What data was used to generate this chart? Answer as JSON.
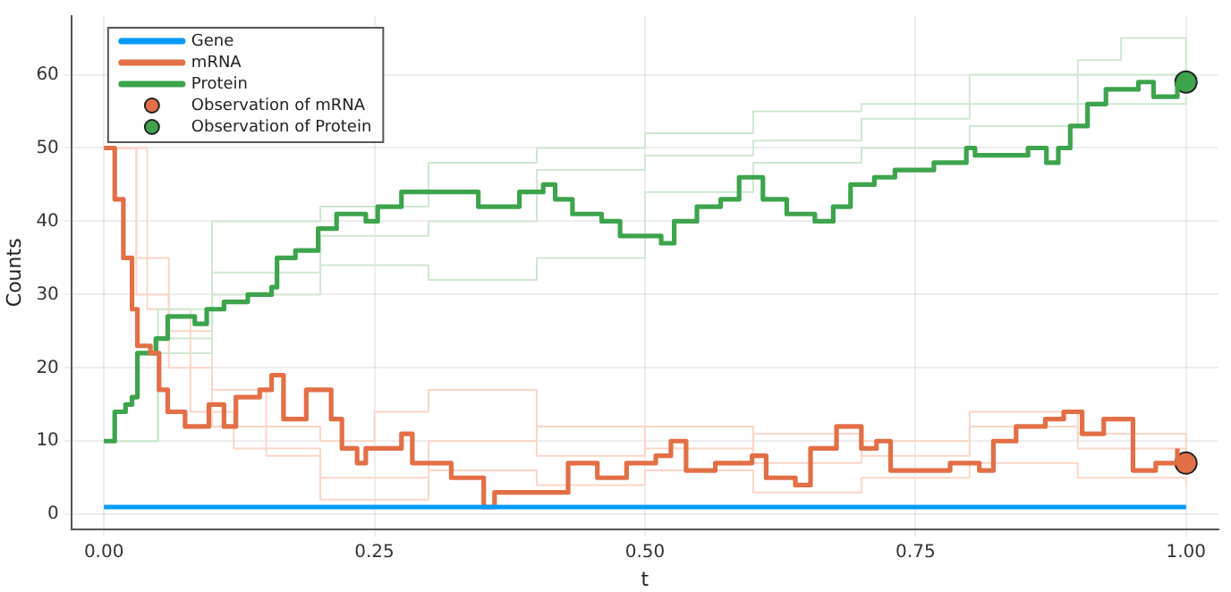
{
  "chart_data": {
    "type": "step",
    "xlabel": "t",
    "ylabel": "Counts",
    "xlim": [
      -0.03,
      1.03
    ],
    "ylim": [
      -2,
      68
    ],
    "xticks": [
      {
        "value": 0,
        "label": "0.00"
      },
      {
        "value": 0.25,
        "label": "0.25"
      },
      {
        "value": 0.5,
        "label": "0.50"
      },
      {
        "value": 0.75,
        "label": "0.75"
      },
      {
        "value": 1,
        "label": "1.00"
      }
    ],
    "yticks": [
      0,
      10,
      20,
      30,
      40,
      50,
      60
    ],
    "grid": true,
    "legend": "top left",
    "line_style": "solid",
    "series": [
      {
        "color": "#cfe8d0",
        "x": [
          0,
          0.05,
          0.1,
          0.2,
          0.3,
          0.4,
          0.5,
          0.6,
          0.7,
          0.8,
          0.9,
          0.94,
          1
        ],
        "values": [
          10,
          28,
          40,
          42,
          48,
          50,
          52,
          55,
          56,
          60,
          62,
          65,
          60
        ]
      },
      {
        "color": "#cfe8d0",
        "x": [
          0,
          0.05,
          0.1,
          0.2,
          0.3,
          0.4,
          0.5,
          0.6,
          0.7,
          0.8,
          0.9,
          1
        ],
        "values": [
          10,
          22,
          30,
          34,
          32,
          35,
          44,
          48,
          50,
          53,
          56,
          57
        ]
      },
      {
        "color": "#cfe8d0",
        "x": [
          0,
          0.05,
          0.1,
          0.2,
          0.3,
          0.4,
          0.5,
          0.6,
          0.7,
          0.8,
          0.9,
          1
        ],
        "values": [
          10,
          24,
          33,
          38,
          40,
          47,
          49,
          51,
          54,
          56,
          60,
          61
        ]
      },
      {
        "color": "#fbd6c8",
        "x": [
          0,
          0.03,
          0.06,
          0.1,
          0.15,
          0.2,
          0.3,
          0.4,
          0.5,
          0.6,
          0.7,
          0.8,
          0.9,
          1
        ],
        "values": [
          50,
          30,
          20,
          12,
          8,
          5,
          10,
          12,
          9,
          11,
          8,
          12,
          9,
          6
        ]
      },
      {
        "color": "#fbd6c8",
        "x": [
          0,
          0.03,
          0.06,
          0.1,
          0.15,
          0.2,
          0.25,
          0.3,
          0.4,
          0.5,
          0.6,
          0.7,
          0.8,
          0.9,
          1
        ],
        "values": [
          50,
          35,
          25,
          17,
          12,
          10,
          14,
          17,
          8,
          12,
          7,
          10,
          14,
          11,
          8
        ]
      },
      {
        "color": "#fbd6c8",
        "x": [
          0,
          0.04,
          0.08,
          0.12,
          0.2,
          0.3,
          0.4,
          0.5,
          0.6,
          0.7,
          0.8,
          0.9,
          1
        ],
        "values": [
          50,
          28,
          14,
          9,
          2,
          6,
          4,
          6,
          3,
          5,
          7,
          5,
          4
        ]
      },
      {
        "name": "Gene",
        "color": "#009afa",
        "x": [
          0,
          1
        ],
        "values": [
          1,
          1
        ]
      },
      {
        "name": "mRNA",
        "color": "#e26f46",
        "x": [
          0,
          0.01,
          0.018,
          0.026,
          0.031,
          0.043,
          0.051,
          0.059,
          0.075,
          0.097,
          0.111,
          0.122,
          0.144,
          0.155,
          0.166,
          0.187,
          0.21,
          0.22,
          0.234,
          0.242,
          0.275,
          0.285,
          0.321,
          0.351,
          0.361,
          0.395,
          0.429,
          0.456,
          0.483,
          0.51,
          0.524,
          0.538,
          0.565,
          0.599,
          0.612,
          0.639,
          0.653,
          0.677,
          0.7,
          0.714,
          0.727,
          0.755,
          0.782,
          0.809,
          0.822,
          0.843,
          0.87,
          0.887,
          0.904,
          0.924,
          0.951,
          0.972,
          0.992
        ],
        "values": [
          50,
          43,
          35,
          28,
          23,
          22,
          17,
          14,
          12,
          15,
          12,
          16,
          17,
          19,
          13,
          17,
          13,
          9,
          7,
          9,
          11,
          7,
          5,
          1,
          3,
          3,
          7,
          5,
          7,
          8,
          10,
          6,
          7,
          8,
          5,
          4,
          9,
          12,
          9,
          10,
          6,
          6,
          7,
          6,
          10,
          12,
          13,
          14,
          11,
          13,
          6,
          7,
          9
        ]
      },
      {
        "name": "Protein",
        "color": "#3da44d",
        "x": [
          0,
          0.01,
          0.02,
          0.026,
          0.031,
          0.048,
          0.059,
          0.084,
          0.095,
          0.111,
          0.133,
          0.155,
          0.16,
          0.177,
          0.198,
          0.215,
          0.242,
          0.253,
          0.275,
          0.33,
          0.346,
          0.373,
          0.384,
          0.406,
          0.417,
          0.433,
          0.46,
          0.477,
          0.504,
          0.515,
          0.527,
          0.548,
          0.57,
          0.587,
          0.609,
          0.631,
          0.657,
          0.674,
          0.69,
          0.712,
          0.731,
          0.767,
          0.797,
          0.805,
          0.838,
          0.854,
          0.871,
          0.882,
          0.893,
          0.909,
          0.926,
          0.956,
          0.97,
          0.992
        ],
        "values": [
          10,
          14,
          15,
          16,
          22,
          24,
          27,
          26,
          28,
          29,
          30,
          31,
          35,
          36,
          39,
          41,
          40,
          42,
          44,
          44,
          42,
          42,
          44,
          45,
          43,
          41,
          40,
          38,
          38,
          37,
          40,
          42,
          43,
          46,
          43,
          41,
          40,
          42,
          45,
          46,
          47,
          48,
          50,
          49,
          49,
          50,
          48,
          50,
          53,
          56,
          58,
          59,
          57,
          59
        ]
      },
      {
        "name": "Observation of mRNA",
        "type": "scatter",
        "marker": "circle",
        "color": "#e26f46",
        "x": [
          1
        ],
        "values": [
          7
        ]
      },
      {
        "name": "Observation of Protein",
        "type": "scatter",
        "marker": "circle",
        "color": "#3da44d",
        "x": [
          1
        ],
        "values": [
          59
        ]
      }
    ]
  }
}
